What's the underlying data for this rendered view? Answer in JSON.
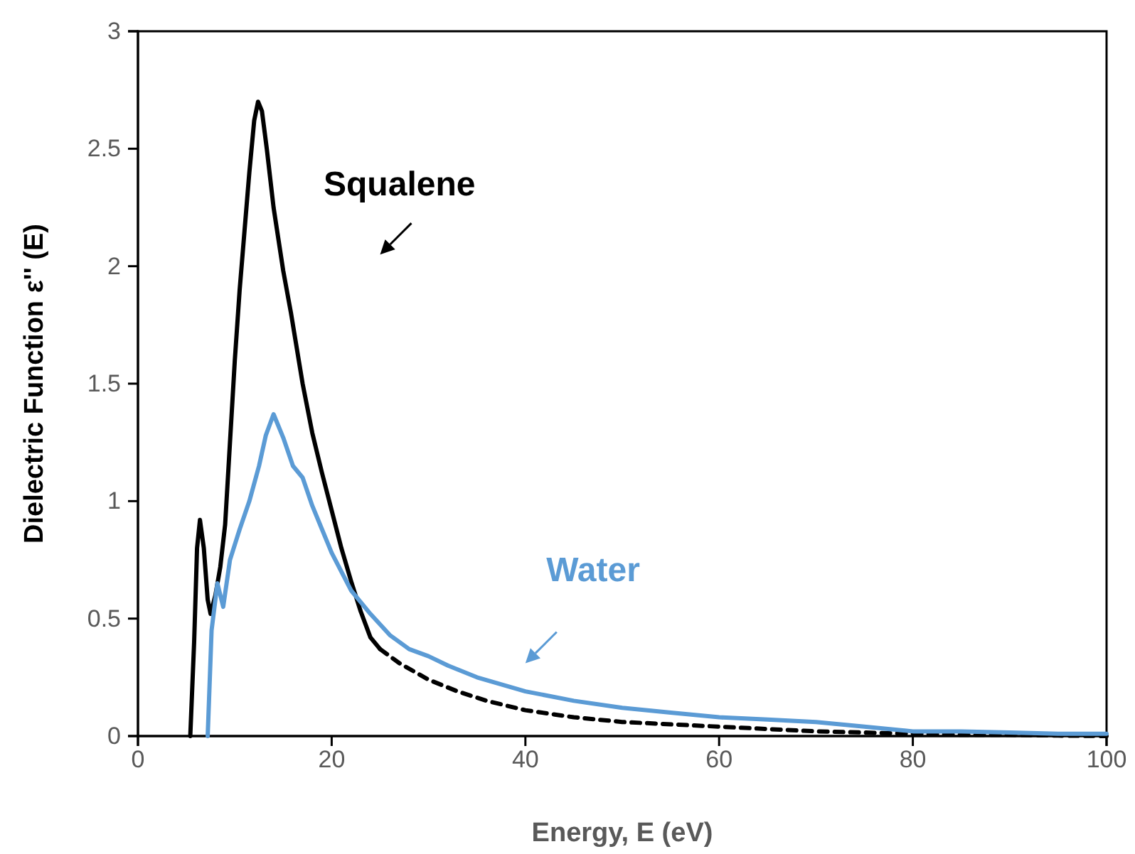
{
  "chart_data": {
    "type": "line",
    "xlabel": "Energy, E (eV)",
    "ylabel": "Dielectric Function ε'' (E)",
    "xlim": [
      0,
      100
    ],
    "ylim": [
      0,
      3
    ],
    "xticks": [
      0,
      20,
      40,
      60,
      80,
      100
    ],
    "yticks": [
      0,
      0.5,
      1,
      1.5,
      2,
      2.5,
      3
    ],
    "grid": false,
    "marker": "none",
    "series": [
      {
        "name": "Squalene",
        "color": "#000000",
        "line_style": "solid",
        "x": [
          5.4,
          5.8,
          6.1,
          6.4,
          6.8,
          7.2,
          7.5,
          8,
          8.5,
          9,
          9.5,
          10,
          10.5,
          11,
          11.5,
          12,
          12.4,
          12.8,
          13.3,
          14,
          15,
          15.8,
          17,
          18,
          19,
          20,
          21,
          22,
          23,
          24,
          25
        ],
        "values": [
          0,
          0.4,
          0.8,
          0.92,
          0.8,
          0.58,
          0.52,
          0.6,
          0.72,
          0.9,
          1.25,
          1.6,
          1.9,
          2.15,
          2.4,
          2.62,
          2.7,
          2.66,
          2.5,
          2.25,
          1.98,
          1.8,
          1.5,
          1.29,
          1.12,
          0.96,
          0.8,
          0.66,
          0.53,
          0.42,
          0.37
        ]
      },
      {
        "color": "#000000",
        "line_style": "dashed",
        "x": [
          25,
          27,
          30,
          33,
          36,
          40,
          45,
          50,
          55,
          60,
          65,
          70,
          75,
          80,
          85,
          90,
          95,
          100
        ],
        "values": [
          0.37,
          0.31,
          0.24,
          0.19,
          0.15,
          0.11,
          0.08,
          0.06,
          0.05,
          0.04,
          0.03,
          0.02,
          0.015,
          0.01,
          0.005,
          0.005,
          0.002,
          0
        ]
      },
      {
        "name": "Water",
        "color": "#5b9bd5",
        "line_style": "solid",
        "x": [
          7.2,
          7.6,
          8.2,
          8.8,
          9.5,
          10.5,
          11.5,
          12.5,
          13.2,
          14,
          15,
          16,
          17,
          18,
          19,
          20,
          22,
          24,
          26,
          28,
          30,
          32,
          35,
          40,
          45,
          50,
          55,
          60,
          65,
          70,
          75,
          80,
          85,
          90,
          95,
          100
        ],
        "values": [
          0,
          0.45,
          0.65,
          0.55,
          0.75,
          0.88,
          1.0,
          1.15,
          1.28,
          1.37,
          1.27,
          1.15,
          1.1,
          0.98,
          0.88,
          0.78,
          0.62,
          0.52,
          0.43,
          0.37,
          0.34,
          0.3,
          0.25,
          0.19,
          0.15,
          0.12,
          0.1,
          0.08,
          0.07,
          0.06,
          0.04,
          0.02,
          0.02,
          0.015,
          0.01,
          0.01
        ]
      }
    ]
  }
}
